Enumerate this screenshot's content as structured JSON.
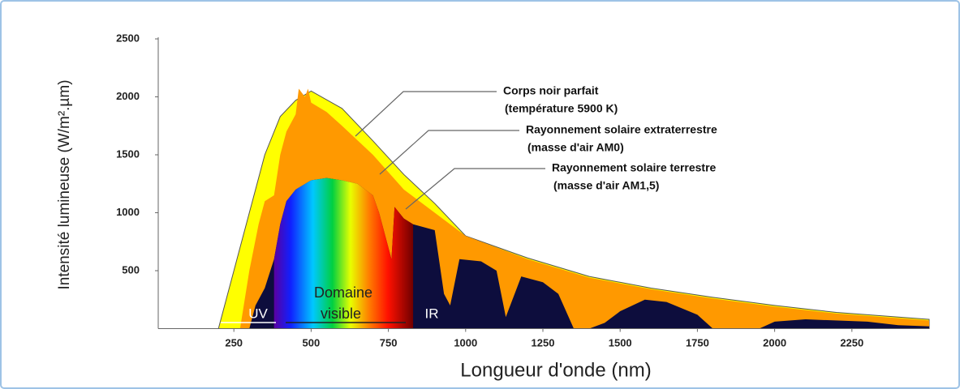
{
  "chart_data": {
    "type": "area",
    "xlabel": "Longueur d'onde (nm)",
    "ylabel": "Intensité lumineuse (W/m².µm)",
    "xlim": [
      0,
      2500
    ],
    "ylim": [
      0,
      2500
    ],
    "xticks": [
      250,
      500,
      750,
      1000,
      1250,
      1500,
      1750,
      2000,
      2250
    ],
    "yticks": [
      500,
      1000,
      1500,
      2000,
      2500
    ],
    "grid": false,
    "series": [
      {
        "name": "Corps noir parfait",
        "color": "#ffff00",
        "x": [
          200,
          250,
          300,
          350,
          400,
          450,
          500,
          600,
          700,
          800,
          900,
          1000,
          1200,
          1400,
          1600,
          1800,
          2000,
          2200,
          2500
        ],
        "values": [
          0,
          500,
          1000,
          1500,
          1830,
          1970,
          2050,
          1900,
          1620,
          1330,
          1080,
          800,
          610,
          450,
          350,
          270,
          200,
          140,
          80
        ]
      },
      {
        "name": "Rayonnement solaire extraterrestre",
        "color": "#ff9900",
        "x": [
          270,
          300,
          330,
          350,
          380,
          400,
          420,
          450,
          460,
          480,
          490,
          500,
          550,
          600,
          700,
          800,
          900,
          1000,
          1200,
          1400,
          1600,
          1800,
          2000,
          2200,
          2500
        ],
        "values": [
          0,
          500,
          900,
          1100,
          1150,
          1500,
          1700,
          1850,
          2070,
          2000,
          2070,
          1950,
          1870,
          1750,
          1500,
          1200,
          1000,
          800,
          600,
          440,
          340,
          260,
          190,
          130,
          70
        ]
      },
      {
        "name": "Rayonnement solaire terrestre",
        "color": "#0d0d3d",
        "x": [
          300,
          320,
          350,
          380,
          400,
          420,
          450,
          500,
          550,
          600,
          650,
          700,
          720,
          760,
          770,
          800,
          830,
          900,
          930,
          950,
          980,
          1050,
          1100,
          1130,
          1180,
          1250,
          1300,
          1350,
          1400,
          1450,
          1500,
          1580,
          1650,
          1750,
          1800,
          1950,
          2000,
          2100,
          2300,
          2400,
          2500
        ],
        "values": [
          0,
          200,
          350,
          600,
          900,
          1100,
          1200,
          1280,
          1300,
          1280,
          1250,
          1150,
          1000,
          600,
          1050,
          950,
          900,
          850,
          300,
          200,
          600,
          580,
          500,
          100,
          450,
          400,
          300,
          0,
          0,
          50,
          150,
          250,
          230,
          120,
          0,
          0,
          60,
          80,
          60,
          30,
          20
        ]
      }
    ],
    "annotations": [
      "(température 5900 K)",
      "(masse d'air AM0)",
      "(masse d'air AM1,5)",
      "Domaine",
      "visible",
      "UV",
      "IR"
    ]
  }
}
